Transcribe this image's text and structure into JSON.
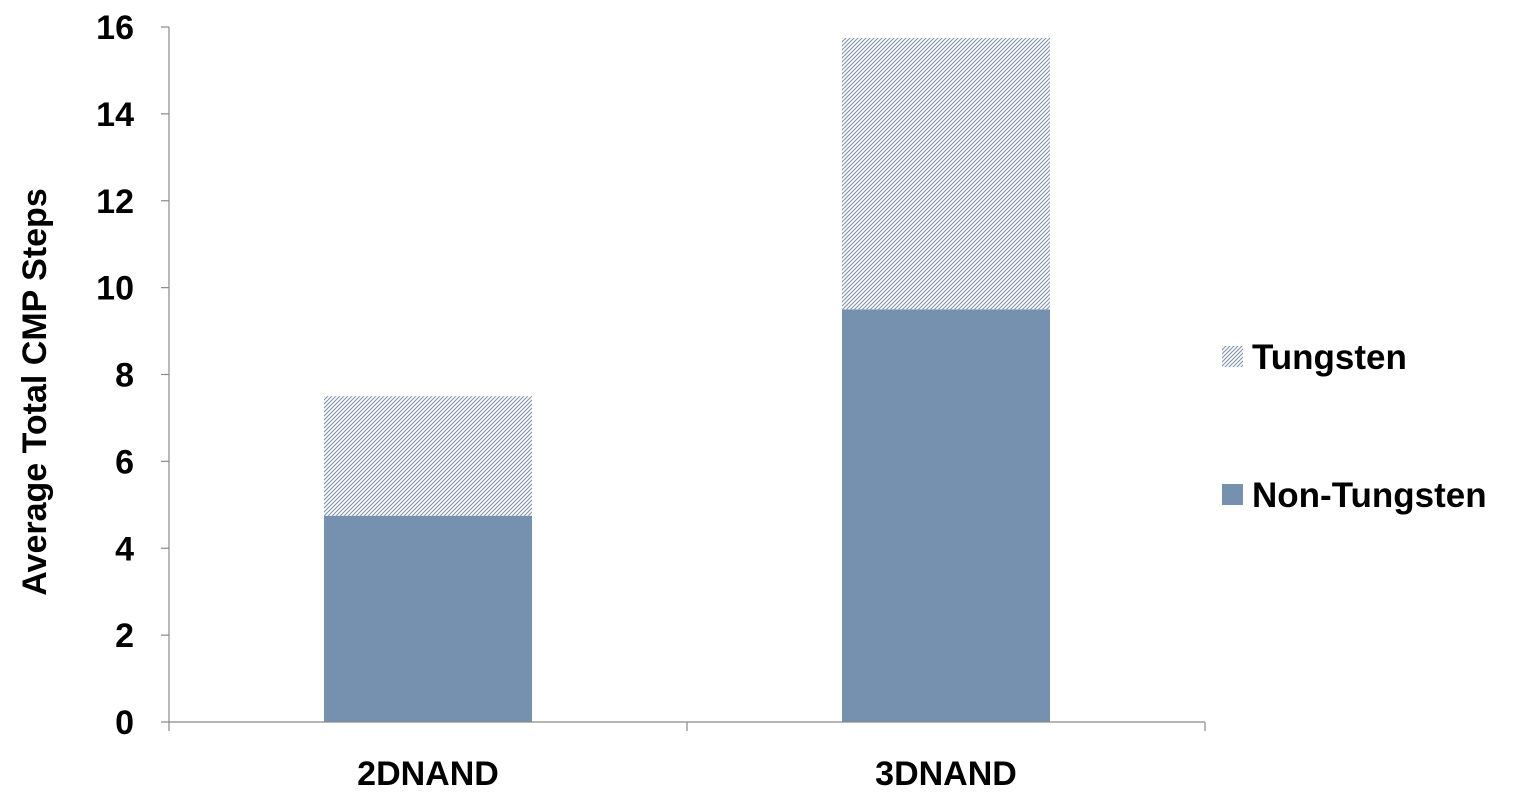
{
  "chart_data": {
    "type": "bar",
    "stacked": true,
    "categories": [
      "2DNAND",
      "3DNAND"
    ],
    "series": [
      {
        "name": "Non-Tungsten",
        "values": [
          4.75,
          9.5
        ],
        "color": "#7690AF",
        "pattern": "solid"
      },
      {
        "name": "Tungsten",
        "values": [
          2.75,
          6.25
        ],
        "color": "#B9C4D3",
        "pattern": "dotted-hatch"
      }
    ],
    "ylabel": "Average Total CMP Steps",
    "xlabel": "",
    "ylim": [
      0,
      16
    ],
    "yticks": [
      "0",
      "2",
      "4",
      "6",
      "8",
      "10",
      "12",
      "14",
      "16"
    ],
    "grid": false,
    "legend_position": "right",
    "legend_order": [
      "Tungsten",
      "Non-Tungsten"
    ]
  }
}
